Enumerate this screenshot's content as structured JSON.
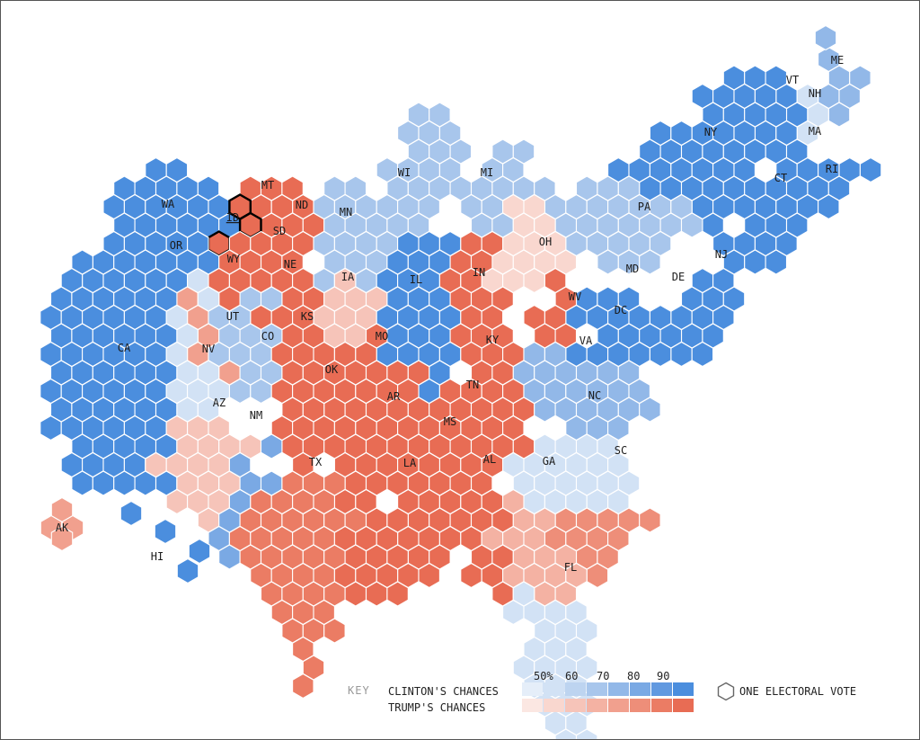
{
  "colors": {
    "clinton_scale": [
      "#e5eef9",
      "#d2e2f5",
      "#bdd4f0",
      "#a8c6ec",
      "#92b8e8",
      "#7aa9e4",
      "#6199e0",
      "#4b8ede"
    ],
    "trump_scale": [
      "#fbe7e2",
      "#f9d7cf",
      "#f6c4b9",
      "#f4b2a3",
      "#f1a08e",
      "#ee8e79",
      "#eb7c64",
      "#e86c54"
    ],
    "grid_line": "#ffffff",
    "border_line": "#333333",
    "highlight_outline": "#000000"
  },
  "states": [
    {
      "abbr": "ME",
      "side": "clinton",
      "level": 4
    },
    {
      "abbr": "VT",
      "side": "clinton",
      "level": 7
    },
    {
      "abbr": "NH",
      "side": "clinton",
      "level": 1
    },
    {
      "abbr": "MA",
      "side": "clinton",
      "level": 7
    },
    {
      "abbr": "NY",
      "side": "clinton",
      "level": 7
    },
    {
      "abbr": "RI",
      "side": "clinton",
      "level": 7
    },
    {
      "abbr": "CT",
      "side": "clinton",
      "level": 7
    },
    {
      "abbr": "WA",
      "side": "clinton",
      "level": 7
    },
    {
      "abbr": "MT",
      "side": "trump",
      "level": 7
    },
    {
      "abbr": "ND",
      "side": "trump",
      "level": 7
    },
    {
      "abbr": "MN",
      "side": "clinton",
      "level": 3
    },
    {
      "abbr": "WI",
      "side": "clinton",
      "level": 3
    },
    {
      "abbr": "MI",
      "side": "clinton",
      "level": 3
    },
    {
      "abbr": "ID",
      "side": "trump",
      "level": 7
    },
    {
      "abbr": "OR",
      "side": "clinton",
      "level": 7
    },
    {
      "abbr": "SD",
      "side": "trump",
      "level": 7
    },
    {
      "abbr": "PA",
      "side": "clinton",
      "level": 3
    },
    {
      "abbr": "OH",
      "side": "trump",
      "level": 1
    },
    {
      "abbr": "WY",
      "side": "trump",
      "level": 7
    },
    {
      "abbr": "NE",
      "side": "trump",
      "level": 7
    },
    {
      "abbr": "IA",
      "side": "trump",
      "level": 2
    },
    {
      "abbr": "IL",
      "side": "clinton",
      "level": 7
    },
    {
      "abbr": "IN",
      "side": "trump",
      "level": 7
    },
    {
      "abbr": "NJ",
      "side": "clinton",
      "level": 7
    },
    {
      "abbr": "MD",
      "side": "clinton",
      "level": 7
    },
    {
      "abbr": "DE",
      "side": "clinton",
      "level": 7
    },
    {
      "abbr": "WV",
      "side": "trump",
      "level": 7
    },
    {
      "abbr": "DC",
      "side": "clinton",
      "level": 7
    },
    {
      "abbr": "UT",
      "side": "trump",
      "level": 4
    },
    {
      "abbr": "CO",
      "side": "clinton",
      "level": 3
    },
    {
      "abbr": "KS",
      "side": "trump",
      "level": 7
    },
    {
      "abbr": "MO",
      "side": "trump",
      "level": 7
    },
    {
      "abbr": "KY",
      "side": "trump",
      "level": 7
    },
    {
      "abbr": "VA",
      "side": "clinton",
      "level": 4
    },
    {
      "abbr": "CA",
      "side": "clinton",
      "level": 7
    },
    {
      "abbr": "NV",
      "side": "clinton",
      "level": 1
    },
    {
      "abbr": "OK",
      "side": "trump",
      "level": 7
    },
    {
      "abbr": "AZ",
      "side": "trump",
      "level": 2
    },
    {
      "abbr": "AR",
      "side": "trump",
      "level": 7
    },
    {
      "abbr": "TN",
      "side": "trump",
      "level": 7
    },
    {
      "abbr": "NC",
      "side": "clinton",
      "level": 1
    },
    {
      "abbr": "NM",
      "side": "clinton",
      "level": 5
    },
    {
      "abbr": "MS",
      "side": "trump",
      "level": 7
    },
    {
      "abbr": "SC",
      "side": "trump",
      "level": 5
    },
    {
      "abbr": "TX",
      "side": "trump",
      "level": 6
    },
    {
      "abbr": "LA",
      "side": "trump",
      "level": 7
    },
    {
      "abbr": "AL",
      "side": "trump",
      "level": 7
    },
    {
      "abbr": "GA",
      "side": "trump",
      "level": 3
    },
    {
      "abbr": "FL",
      "side": "clinton",
      "level": 1
    },
    {
      "abbr": "AK",
      "side": "trump",
      "level": 4
    },
    {
      "abbr": "HI",
      "side": "clinton",
      "level": 7
    }
  ],
  "highlighted_state": "ID",
  "key": {
    "title": "KEY",
    "clinton_label": "CLINTON'S CHANCES",
    "trump_label": "TRUMP'S CHANCES",
    "ticks": [
      "50%",
      "60",
      "70",
      "80",
      "90"
    ],
    "vote_label": "ONE ELECTORAL VOTE"
  }
}
